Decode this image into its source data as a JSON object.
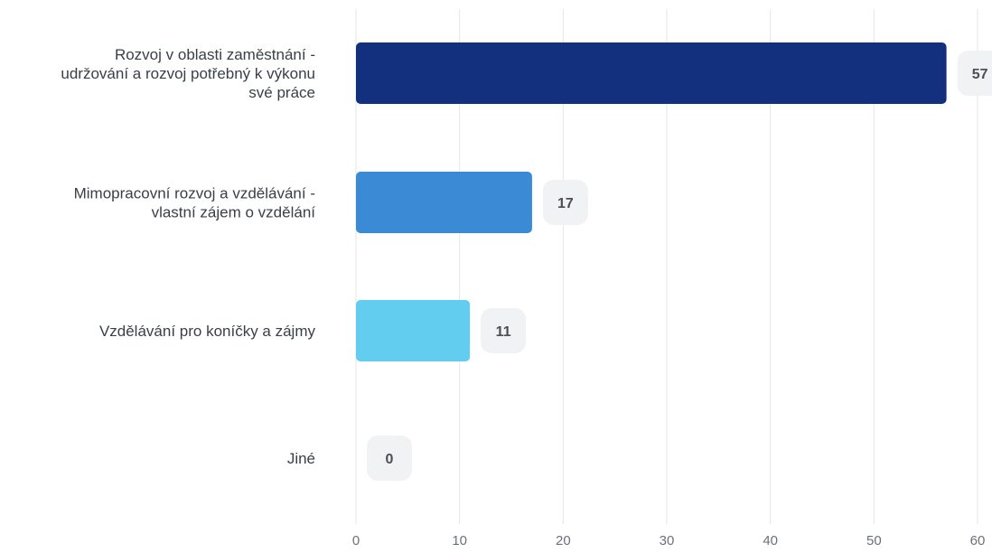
{
  "chart_data": {
    "type": "bar",
    "orientation": "horizontal",
    "categories": [
      "Rozvoj v oblasti zaměstnání - udržování a rozvoj potřebný k výkonu své práce",
      "Mimopracovní rozvoj a vzdělávání - vlastní zájem o vzdělání",
      "Vzdělávání pro koníčky a zájmy",
      "Jiné"
    ],
    "category_lines": [
      [
        "Rozvoj v oblasti zaměstnání -",
        "udržování a rozvoj potřebný k výkonu",
        "své práce"
      ],
      [
        "Mimopracovní rozvoj a vzdělávání -",
        "vlastní zájem o vzdělání"
      ],
      [
        "Vzdělávání pro koníčky a zájmy"
      ],
      [
        "Jiné"
      ]
    ],
    "values": [
      57,
      17,
      11,
      0
    ],
    "value_labels": [
      "57",
      "17",
      "11",
      "0"
    ],
    "colors": [
      "#13307f",
      "#3a8ad6",
      "#62cdef",
      "#cccccc"
    ],
    "xlim": [
      0,
      60
    ],
    "xticks": [
      0,
      10,
      20,
      30,
      40,
      50,
      60
    ],
    "xtick_labels": [
      "0",
      "10",
      "20",
      "30",
      "40",
      "50",
      "60"
    ],
    "grid": true,
    "legend": "none",
    "title": "",
    "xlabel": "",
    "ylabel": ""
  }
}
